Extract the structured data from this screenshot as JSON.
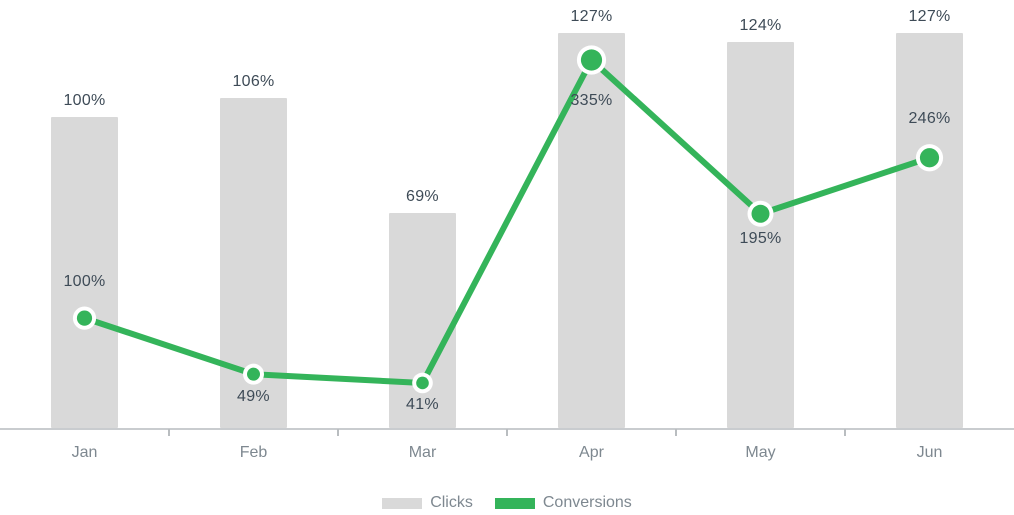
{
  "chart_data": {
    "type": "bar",
    "subtype": "combo-bar-line",
    "title": "",
    "categories": [
      "Jan",
      "Feb",
      "Mar",
      "Apr",
      "May",
      "Jun"
    ],
    "value_suffix": "%",
    "xlabel": "",
    "ylabel": "",
    "grid": false,
    "y_axis_visible": false,
    "bar_axis_range": [
      0,
      137
    ],
    "line_axis_range": [
      0,
      387
    ],
    "legend_position": "bottom-center",
    "series": [
      {
        "name": "Clicks",
        "type": "bar",
        "color": "#d9d9d9",
        "values": [
          100,
          106,
          69,
          127,
          124,
          127
        ],
        "labels": [
          "100%",
          "106%",
          "69%",
          "127%",
          "124%",
          "127%"
        ]
      },
      {
        "name": "Conversions",
        "type": "line",
        "color": "#34b45a",
        "marker_ring_color": "#ffffff",
        "values": [
          100,
          49,
          41,
          335,
          195,
          246
        ],
        "labels": [
          "100%",
          "49%",
          "41%",
          "335%",
          "195%",
          "246%"
        ],
        "label_positions": [
          "above",
          "below",
          "below",
          "below-far",
          "below",
          "above"
        ]
      }
    ],
    "colors": {
      "bar_fill": "#d9d9d9",
      "line_stroke": "#34b45a",
      "value_label_text": "#3e4b57",
      "axis_line": "#c9cccf",
      "axis_tick": "#b9bdc0",
      "axis_label_text": "#7e8890",
      "background": "#ffffff"
    }
  }
}
